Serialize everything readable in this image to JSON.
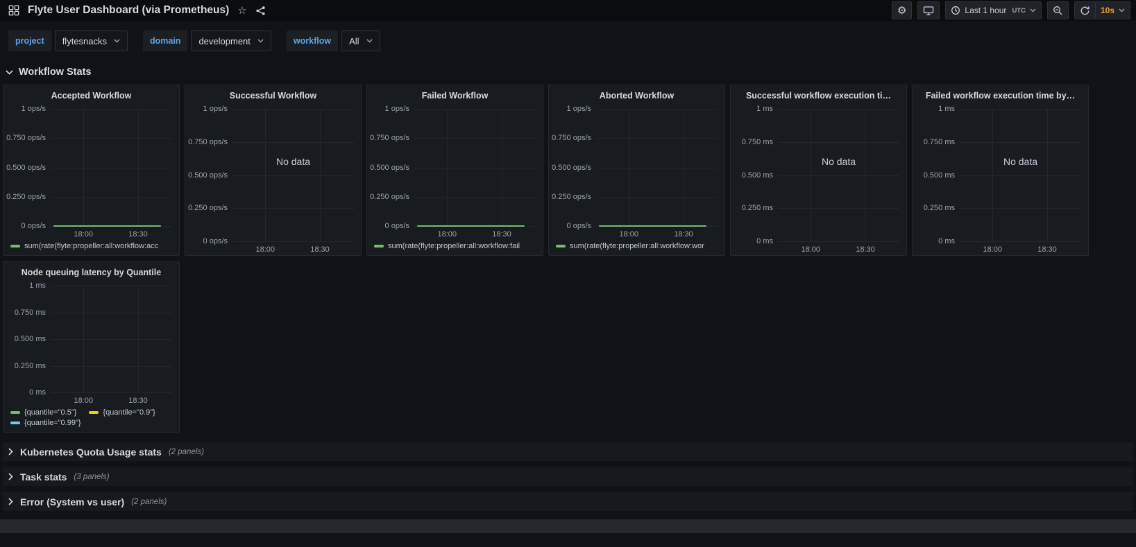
{
  "topbar": {
    "title": "Flyte User Dashboard (via Prometheus)",
    "time_range": "Last 1 hour",
    "timezone": "UTC",
    "refresh_interval": "10s"
  },
  "variables": [
    {
      "label": "project",
      "value": "flytesnacks"
    },
    {
      "label": "domain",
      "value": "development"
    },
    {
      "label": "workflow",
      "value": "All"
    }
  ],
  "row_header": {
    "title": "Workflow Stats"
  },
  "labels": {
    "no_data": "No data"
  },
  "panels": [
    {
      "title": "Accepted Workflow",
      "y_ticks": [
        "1 ops/s",
        "0.750 ops/s",
        "0.500 ops/s",
        "0.250 ops/s",
        "0 ops/s"
      ],
      "x_ticks": [
        "18:00",
        "18:30"
      ],
      "no_data": false,
      "line_at_zero": true,
      "series": [
        {
          "label": "sum(rate(flyte:propeller:all:workflow:acc",
          "color": "#73bf69",
          "values": [
            0,
            0
          ]
        }
      ]
    },
    {
      "title": "Successful Workflow",
      "y_ticks": [
        "1 ops/s",
        "0.750 ops/s",
        "0.500 ops/s",
        "0.250 ops/s",
        "0 ops/s"
      ],
      "x_ticks": [
        "18:00",
        "18:30"
      ],
      "no_data": true,
      "line_at_zero": false,
      "series": []
    },
    {
      "title": "Failed Workflow",
      "y_ticks": [
        "1 ops/s",
        "0.750 ops/s",
        "0.500 ops/s",
        "0.250 ops/s",
        "0 ops/s"
      ],
      "x_ticks": [
        "18:00",
        "18:30"
      ],
      "no_data": false,
      "line_at_zero": true,
      "series": [
        {
          "label": "sum(rate(flyte:propeller:all:workflow:fail",
          "color": "#73bf69",
          "values": [
            0,
            0
          ]
        }
      ]
    },
    {
      "title": "Aborted Workflow",
      "y_ticks": [
        "1 ops/s",
        "0.750 ops/s",
        "0.500 ops/s",
        "0.250 ops/s",
        "0 ops/s"
      ],
      "x_ticks": [
        "18:00",
        "18:30"
      ],
      "no_data": false,
      "line_at_zero": true,
      "series": [
        {
          "label": "sum(rate(flyte:propeller:all:workflow:wor",
          "color": "#73bf69",
          "values": [
            0,
            0
          ]
        }
      ]
    },
    {
      "title": "Successful workflow execution ti…",
      "y_ticks": [
        "1 ms",
        "0.750 ms",
        "0.500 ms",
        "0.250 ms",
        "0 ms"
      ],
      "x_ticks": [
        "18:00",
        "18:30"
      ],
      "no_data": true,
      "line_at_zero": false,
      "series": []
    },
    {
      "title": "Failed workflow execution time by…",
      "y_ticks": [
        "1 ms",
        "0.750 ms",
        "0.500 ms",
        "0.250 ms",
        "0 ms"
      ],
      "x_ticks": [
        "18:00",
        "18:30"
      ],
      "no_data": true,
      "line_at_zero": false,
      "series": []
    },
    {
      "title": "Node queuing latency by Quantile",
      "y_ticks": [
        "1 ms",
        "0.750 ms",
        "0.500 ms",
        "0.250 ms",
        "0 ms"
      ],
      "x_ticks": [
        "18:00",
        "18:30"
      ],
      "no_data": false,
      "line_at_zero": false,
      "series": [
        {
          "label": "{quantile=\"0.5\"}",
          "color": "#73bf69",
          "values": []
        },
        {
          "label": "{quantile=\"0.9\"}",
          "color": "#f2cc0c",
          "values": []
        },
        {
          "label": "{quantile=\"0.99\"}",
          "color": "#6ed0e0",
          "values": []
        }
      ]
    }
  ],
  "collapsed_rows": [
    {
      "title": "Kubernetes Quota Usage stats",
      "count": "(2 panels)"
    },
    {
      "title": "Task stats",
      "count": "(3 panels)"
    },
    {
      "title": "Error (System vs user)",
      "count": "(2 panels)"
    }
  ],
  "colors": {
    "green": "#73bf69",
    "yellow": "#f2cc0c",
    "cyan": "#6ed0e0",
    "accent_blue": "#58a6f0",
    "refresh_orange": "#e9a13b",
    "page_bg": "#111217",
    "panel_bg": "#181b1f"
  }
}
